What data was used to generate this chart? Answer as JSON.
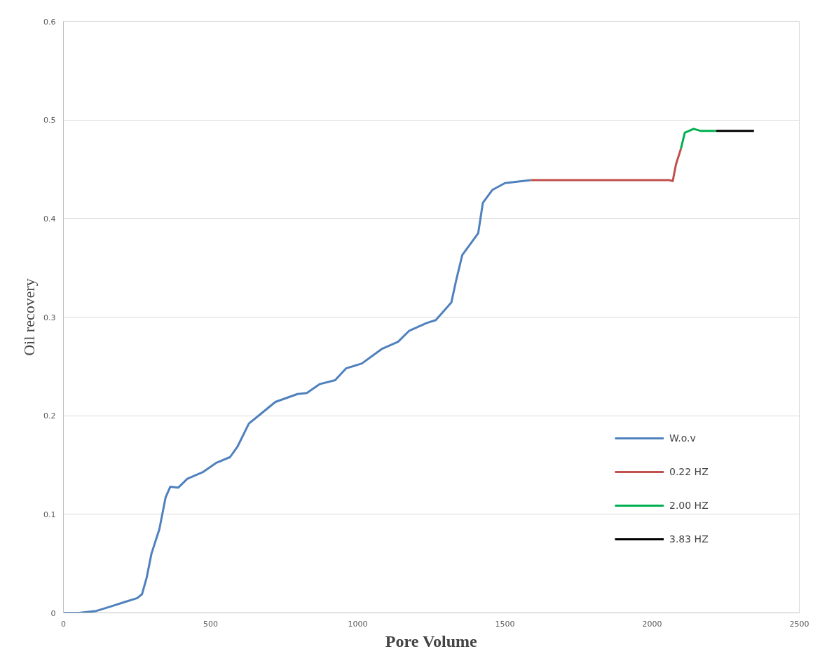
{
  "chart_data": {
    "type": "line",
    "xlabel": "Pore Volume",
    "ylabel": "Oil recovery",
    "xlim": [
      0,
      2500
    ],
    "xticks": [
      0,
      500,
      1000,
      1500,
      2000,
      2500
    ],
    "ylim": [
      0,
      0.6
    ],
    "yticks": [
      0,
      0.1,
      0.2,
      0.3,
      0.4,
      0.5,
      0.6
    ],
    "grid": "y",
    "legend": "bottom right",
    "marker": "none",
    "line_style": "solid",
    "series": [
      {
        "name": "W.o.v",
        "color": "#4f81bd",
        "x": [
          0,
          53,
          112,
          155,
          208,
          251,
          267,
          283,
          299,
          326,
          347,
          363,
          390,
          421,
          475,
          518,
          566,
          592,
          630,
          667,
          720,
          795,
          827,
          870,
          923,
          960,
          1014,
          1083,
          1137,
          1174,
          1234,
          1265,
          1318,
          1334,
          1355,
          1409,
          1425,
          1457,
          1500,
          1588
        ],
        "values": [
          0,
          0,
          0.002,
          0.006,
          0.011,
          0.015,
          0.019,
          0.036,
          0.06,
          0.085,
          0.117,
          0.128,
          0.127,
          0.136,
          0.143,
          0.152,
          0.158,
          0.169,
          0.192,
          0.201,
          0.214,
          0.222,
          0.223,
          0.232,
          0.236,
          0.248,
          0.253,
          0.268,
          0.275,
          0.286,
          0.294,
          0.297,
          0.315,
          0.337,
          0.363,
          0.385,
          0.416,
          0.429,
          0.436,
          0.439
        ]
      },
      {
        "name": "0.22 HZ",
        "color": "#c0504d",
        "x": [
          1588,
          2058,
          2070,
          2081,
          2098
        ],
        "values": [
          0.439,
          0.439,
          0.438,
          0.455,
          0.471
        ]
      },
      {
        "name": "2.00 HZ",
        "color": "#00b050",
        "x": [
          2098,
          2111,
          2141,
          2164,
          2218
        ],
        "values": [
          0.471,
          0.487,
          0.491,
          0.489,
          0.489
        ]
      },
      {
        "name": "3.83 HZ",
        "color": "#000000",
        "x": [
          2218,
          2346
        ],
        "values": [
          0.489,
          0.489
        ]
      }
    ]
  }
}
